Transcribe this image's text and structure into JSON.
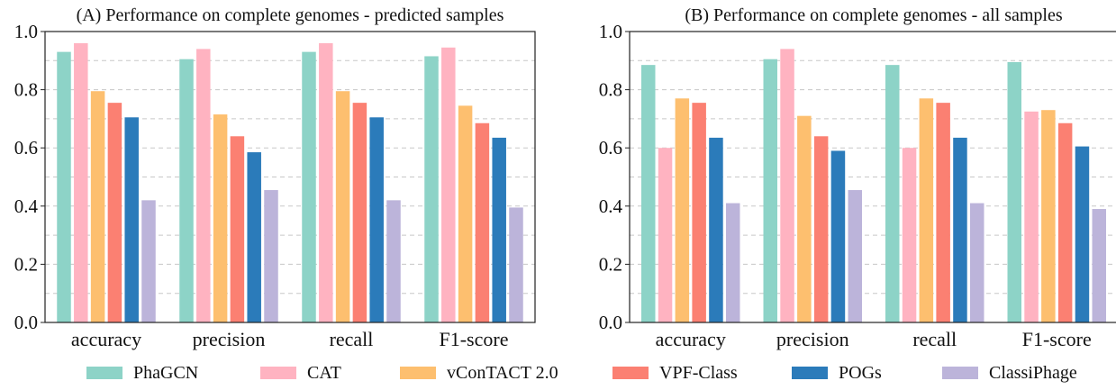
{
  "chart_data": [
    {
      "type": "bar",
      "title": "(A) Performance on complete genomes - predicted samples",
      "categories": [
        "accuracy",
        "precision",
        "recall",
        "F1-score"
      ],
      "ylim": [
        0,
        1.0
      ],
      "yticks": [
        "0.0",
        "0.2",
        "0.4",
        "0.6",
        "0.8",
        "1.0"
      ],
      "grid": "horizontal dashed",
      "series": [
        {
          "name": "PhaGCN",
          "values": [
            0.93,
            0.905,
            0.93,
            0.915
          ]
        },
        {
          "name": "CAT",
          "values": [
            0.96,
            0.94,
            0.96,
            0.945
          ]
        },
        {
          "name": "vConTACT 2.0",
          "values": [
            0.795,
            0.715,
            0.795,
            0.745
          ]
        },
        {
          "name": "VPF-Class",
          "values": [
            0.755,
            0.64,
            0.755,
            0.685
          ]
        },
        {
          "name": "POGs",
          "values": [
            0.705,
            0.585,
            0.705,
            0.635
          ]
        },
        {
          "name": "ClassiPhage",
          "values": [
            0.42,
            0.455,
            0.42,
            0.395
          ]
        }
      ]
    },
    {
      "type": "bar",
      "title": "(B) Performance on complete genomes - all samples",
      "categories": [
        "accuracy",
        "precision",
        "recall",
        "F1-score"
      ],
      "ylim": [
        0,
        1.0
      ],
      "yticks": [
        "0.0",
        "0.2",
        "0.4",
        "0.6",
        "0.8",
        "1.0"
      ],
      "grid": "horizontal dashed",
      "series": [
        {
          "name": "PhaGCN",
          "values": [
            0.885,
            0.905,
            0.885,
            0.895
          ]
        },
        {
          "name": "CAT",
          "values": [
            0.6,
            0.94,
            0.6,
            0.725
          ]
        },
        {
          "name": "vConTACT 2.0",
          "values": [
            0.77,
            0.71,
            0.77,
            0.73
          ]
        },
        {
          "name": "VPF-Class",
          "values": [
            0.755,
            0.64,
            0.755,
            0.685
          ]
        },
        {
          "name": "POGs",
          "values": [
            0.635,
            0.59,
            0.635,
            0.605
          ]
        },
        {
          "name": "ClassiPhage",
          "values": [
            0.41,
            0.455,
            0.41,
            0.39
          ]
        }
      ]
    }
  ],
  "colors": [
    "#8dd3c7",
    "#ffb3c1",
    "#fdbf6f",
    "#fb8072",
    "#2b7bba",
    "#bcb4da"
  ],
  "legend": {
    "placement": "bottom",
    "items": [
      {
        "label": "PhaGCN",
        "color": "#8dd3c7"
      },
      {
        "label": "CAT",
        "color": "#ffb3c1"
      },
      {
        "label": "vConTACT 2.0",
        "color": "#fdbf6f"
      },
      {
        "label": "VPF-Class",
        "color": "#fb8072"
      },
      {
        "label": "POGs",
        "color": "#2b7bba"
      },
      {
        "label": "ClassiPhage",
        "color": "#bcb4da"
      }
    ]
  }
}
